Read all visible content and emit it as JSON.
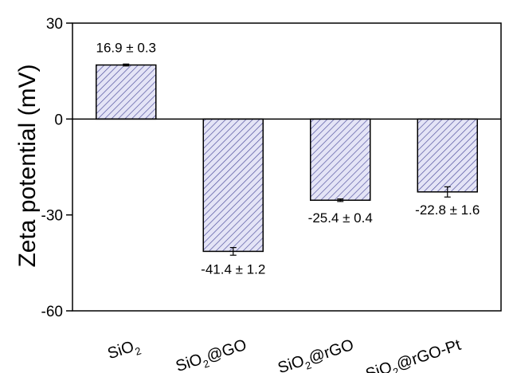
{
  "chart_data": {
    "type": "bar",
    "title": "",
    "xlabel": "",
    "ylabel": "Zeta potential (mV)",
    "ylim": [
      -60,
      30
    ],
    "yticks": [
      30,
      0,
      -30,
      -60
    ],
    "categories": [
      {
        "pre": "SiO",
        "sub": "2",
        "post": ""
      },
      {
        "pre": "SiO",
        "sub": "2",
        "post": "@GO"
      },
      {
        "pre": "SiO",
        "sub": "2",
        "post": "@rGO"
      },
      {
        "pre": "SiO",
        "sub": "2",
        "post": "@rGO-Pt"
      }
    ],
    "values": [
      16.9,
      -41.4,
      -25.4,
      -22.8
    ],
    "errors": [
      0.3,
      1.2,
      0.4,
      1.6
    ],
    "data_labels": [
      "16.9 ± 0.3",
      "-41.4 ± 1.2",
      "-25.4 ± 0.4",
      "-22.8 ± 1.6"
    ],
    "bar_fill": "#e4e4f6",
    "hatch_color": "#4a4a9a",
    "grid": false,
    "legend": "none"
  }
}
